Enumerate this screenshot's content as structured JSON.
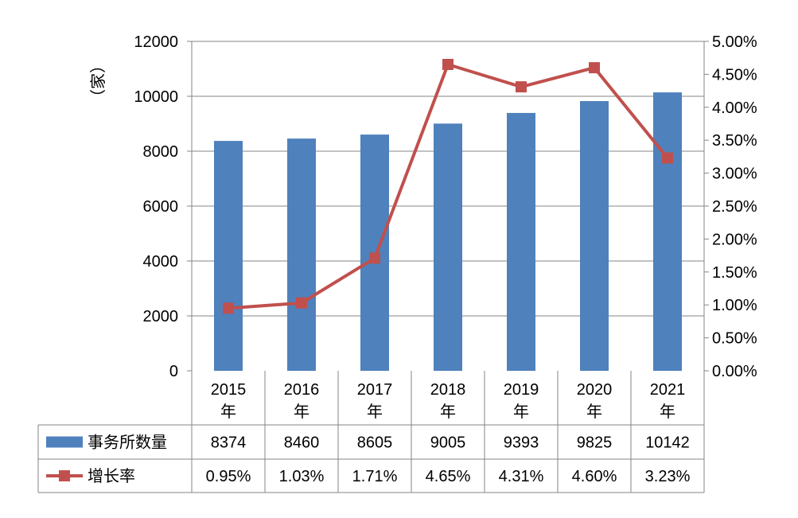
{
  "chart_data": {
    "type": "bar",
    "categories": [
      "2015\n年",
      "2016\n年",
      "2017\n年",
      "2018\n年",
      "2019\n年",
      "2020\n年",
      "2021\n年"
    ],
    "y_unit_label": "（家）",
    "ylim": [
      0,
      12000
    ],
    "y_ticks": [
      "0",
      "2000",
      "4000",
      "6000",
      "8000",
      "10000",
      "12000"
    ],
    "y2lim": [
      0,
      5.0
    ],
    "y2_ticks": [
      "0.00%",
      "0.50%",
      "1.00%",
      "1.50%",
      "2.00%",
      "2.50%",
      "3.00%",
      "3.50%",
      "4.00%",
      "4.50%",
      "5.00%"
    ],
    "grid": true,
    "legend_placement": "data table (bottom-left)",
    "series": [
      {
        "name": "事务所数量",
        "kind": "bar",
        "axis": "left",
        "color": "#4F81BD",
        "values": [
          8374,
          8460,
          8605,
          9005,
          9393,
          9825,
          10142
        ],
        "labels": [
          "8374",
          "8460",
          "8605",
          "9005",
          "9393",
          "9825",
          "10142"
        ]
      },
      {
        "name": "增长率",
        "kind": "line",
        "axis": "right",
        "color": "#C0504D",
        "values": [
          0.95,
          1.03,
          1.71,
          4.65,
          4.31,
          4.6,
          3.23
        ],
        "labels": [
          "0.95%",
          "1.03%",
          "1.71%",
          "4.65%",
          "4.31%",
          "4.60%",
          "3.23%"
        ]
      }
    ]
  }
}
